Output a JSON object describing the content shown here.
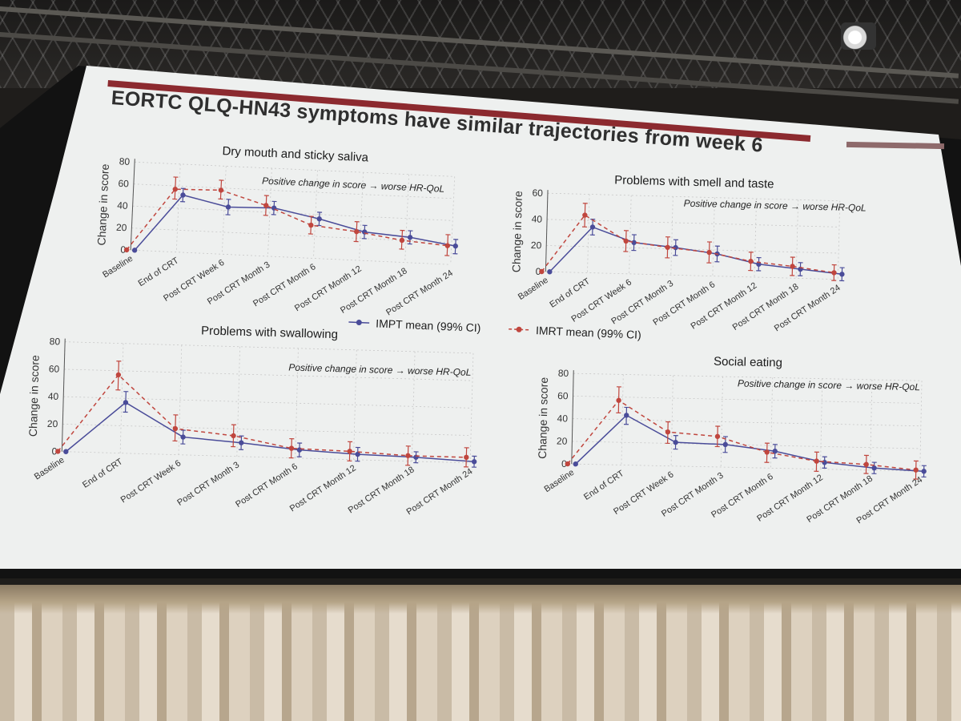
{
  "slide": {
    "title": "EORTC QLQ-HN43 symptoms have similar trajectories from week 6",
    "note": "Positive change in score → worse HR-QoL"
  },
  "colors": {
    "impt": "#4a4c99",
    "imrt": "#c0463e",
    "title_bar": "#8c2a2f"
  },
  "legend": {
    "impt_label": "IMPT mean (99% CI)",
    "imrt_label": "IMRT mean (99% CI)"
  },
  "chart_data": [
    {
      "type": "line",
      "title": "Dry mouth and sticky saliva",
      "ylabel": "Change in score",
      "ylim": [
        0,
        80
      ],
      "yticks": [
        0,
        20,
        40,
        60,
        80
      ],
      "categories": [
        "Baseline",
        "End of CRT",
        "Post CRT Week 6",
        "Post CRT Month 3",
        "Post CRT Month 6",
        "Post CRT Month 12",
        "Post CRT Month 18",
        "Post CRT Month 24"
      ],
      "series": [
        {
          "name": "IMPT mean (99% CI)",
          "values": [
            0,
            52,
            43,
            44,
            36,
            26,
            23,
            17
          ],
          "ci": [
            [
              0,
              0
            ],
            [
              46,
              58
            ],
            [
              36,
              50
            ],
            [
              38,
              50
            ],
            [
              30,
              42
            ],
            [
              20,
              32
            ],
            [
              17,
              29
            ],
            [
              10,
              23
            ]
          ]
        },
        {
          "name": "IMRT mean (99% CI)",
          "values": [
            0,
            57,
            58,
            46,
            30,
            26,
            20,
            17
          ],
          "ci": [
            [
              0,
              0
            ],
            [
              48,
              68
            ],
            [
              50,
              67
            ],
            [
              37,
              55
            ],
            [
              22,
              38
            ],
            [
              17,
              35
            ],
            [
              12,
              29
            ],
            [
              8,
              27
            ]
          ]
        }
      ]
    },
    {
      "type": "line",
      "title": "Problems with smell and taste",
      "ylabel": "Change in score",
      "ylim": [
        0,
        60
      ],
      "yticks": [
        0,
        20,
        40,
        60
      ],
      "categories": [
        "Baseline",
        "End of CRT",
        "Post CRT Week 6",
        "Post CRT Month 3",
        "Post CRT Month 6",
        "Post CRT Month 12",
        "Post CRT Month 18",
        "Post CRT Month 24"
      ],
      "series": [
        {
          "name": "IMPT mean (99% CI)",
          "values": [
            0,
            35,
            24,
            21,
            17,
            10,
            7,
            4
          ],
          "ci": [
            [
              0,
              0
            ],
            [
              29,
              41
            ],
            [
              18,
              30
            ],
            [
              15,
              27
            ],
            [
              11,
              23
            ],
            [
              5,
              15
            ],
            [
              2,
              12
            ],
            [
              -1,
              9
            ]
          ]
        },
        {
          "name": "IMRT mean (99% CI)",
          "values": [
            0,
            44,
            25,
            21,
            18,
            12,
            9,
            5
          ],
          "ci": [
            [
              0,
              0
            ],
            [
              35,
              53
            ],
            [
              17,
              33
            ],
            [
              13,
              29
            ],
            [
              10,
              26
            ],
            [
              5,
              19
            ],
            [
              2,
              16
            ],
            [
              -1,
              11
            ]
          ]
        }
      ]
    },
    {
      "type": "line",
      "title": "Problems with swallowing",
      "ylabel": "Change in score",
      "ylim": [
        0,
        80
      ],
      "yticks": [
        0,
        20,
        40,
        60,
        80
      ],
      "categories": [
        "Baseline",
        "End of CRT",
        "Post CRT Week 6",
        "Post CRT Month 3",
        "Post CRT Month 6",
        "Post CRT Month 12",
        "Post CRT Month 18",
        "Post CRT Month 24"
      ],
      "series": [
        {
          "name": "IMPT mean (99% CI)",
          "values": [
            0,
            37,
            13,
            10,
            6,
            4,
            3,
            1
          ],
          "ci": [
            [
              0,
              0
            ],
            [
              30,
              45
            ],
            [
              8,
              18
            ],
            [
              5,
              15
            ],
            [
              1,
              11
            ],
            [
              -1,
              9
            ],
            [
              -1,
              7
            ],
            [
              -3,
              5
            ]
          ]
        },
        {
          "name": "IMRT mean (99% CI)",
          "values": [
            0,
            57,
            19,
            15,
            7,
            6,
            4,
            4
          ],
          "ci": [
            [
              0,
              0
            ],
            [
              46,
              67
            ],
            [
              10,
              29
            ],
            [
              7,
              23
            ],
            [
              0,
              14
            ],
            [
              -1,
              13
            ],
            [
              -3,
              11
            ],
            [
              -3,
              11
            ]
          ]
        }
      ]
    },
    {
      "type": "line",
      "title": "Social eating",
      "ylabel": "Change in score",
      "ylim": [
        0,
        80
      ],
      "yticks": [
        0,
        20,
        40,
        60,
        80
      ],
      "categories": [
        "Baseline",
        "End of CRT",
        "Post CRT Week 6",
        "Post CRT Month 3",
        "Post CRT Month 6",
        "Post CRT Month 12",
        "Post CRT Month 18",
        "Post CRT Month 24"
      ],
      "series": [
        {
          "name": "IMPT mean (99% CI)",
          "values": [
            0,
            44,
            21,
            20,
            15,
            6,
            2,
            0
          ],
          "ci": [
            [
              0,
              0
            ],
            [
              36,
              51
            ],
            [
              15,
              27
            ],
            [
              13,
              27
            ],
            [
              9,
              21
            ],
            [
              1,
              11
            ],
            [
              -3,
              7
            ],
            [
              -5,
              5
            ]
          ]
        },
        {
          "name": "IMRT mean (99% CI)",
          "values": [
            0,
            57,
            30,
            27,
            14,
            7,
            5,
            1
          ],
          "ci": [
            [
              0,
              0
            ],
            [
              46,
              69
            ],
            [
              20,
              39
            ],
            [
              18,
              36
            ],
            [
              5,
              22
            ],
            [
              -2,
              15
            ],
            [
              -3,
              13
            ],
            [
              -7,
              9
            ]
          ]
        }
      ]
    }
  ]
}
